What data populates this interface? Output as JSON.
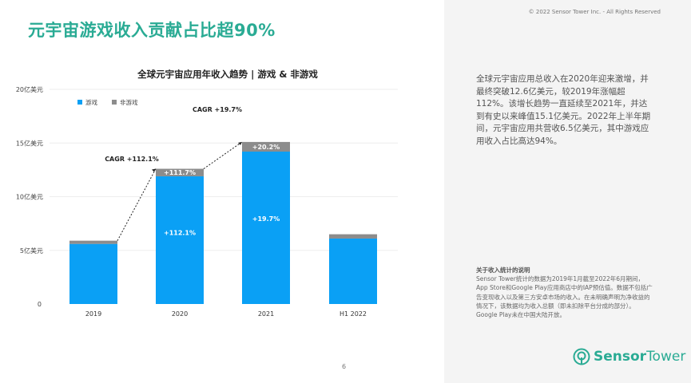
{
  "header": {
    "title": "元宇宙游戏收入贡献占比超90%",
    "copyright": "© 2022 Sensor Tower Inc. - All Rights Reserved"
  },
  "chart_data": {
    "type": "bar",
    "stacked": true,
    "title": "全球元宇宙应用年收入趋势 | 游戏 & 非游戏",
    "categories": [
      "2019",
      "2020",
      "2021",
      "H1 2022"
    ],
    "series": [
      {
        "name": "游戏",
        "color": "#0aa0f5",
        "values": [
          5.6,
          11.9,
          14.2,
          6.1
        ]
      },
      {
        "name": "非游戏",
        "color": "#8c8c8c",
        "values": [
          0.3,
          0.7,
          0.9,
          0.4
        ]
      }
    ],
    "ylim": [
      0,
      20
    ],
    "yticks": [
      {
        "v": 0,
        "label": "0"
      },
      {
        "v": 5,
        "label": "5亿美元"
      },
      {
        "v": 10,
        "label": "10亿美元"
      },
      {
        "v": 15,
        "label": "15亿美元"
      },
      {
        "v": 20,
        "label": "20亿美元"
      }
    ],
    "grid": true,
    "legend": "top-left",
    "bar_labels": [
      {
        "category": "2020",
        "series": "游戏",
        "text": "+112.1%"
      },
      {
        "category": "2020",
        "series": "非游戏",
        "text": "+111.7%"
      },
      {
        "category": "2021",
        "series": "游戏",
        "text": "+19.7%"
      },
      {
        "category": "2021",
        "series": "非游戏",
        "text": "+20.2%"
      }
    ],
    "annotations": [
      {
        "text": "CAGR +112.1%",
        "from": "2019",
        "to": "2020"
      },
      {
        "text": "CAGR +19.7%",
        "from": "2020",
        "to": "2021"
      }
    ]
  },
  "summary": "全球元宇宙应用总收入在2020年迎来激增，并最终突破12.6亿美元，较2019年涨幅超112%。该增长趋势一直延续至2021年，并达到有史以来峰值15.1亿美元。2022年上半年期间，元宇宙应用共营收6.5亿美元，其中游戏应用收入占比高达94%。",
  "note": {
    "title": "关于收入统计的说明",
    "body": "Sensor Tower统计的数据为2019年1月截至2022年6月期间，App Store和Google Play应用商店中的IAP预估值。数据不包括广告变现收入以及第三方安卓市场的收入。在未明确声明为净收益的情况下，该数据均为收入总额（即未扣除平台分成的部分）。Google Play未在中国大陆开放。"
  },
  "logo": {
    "part1": "Sensor",
    "part2": "Tower"
  },
  "page_number": "6"
}
